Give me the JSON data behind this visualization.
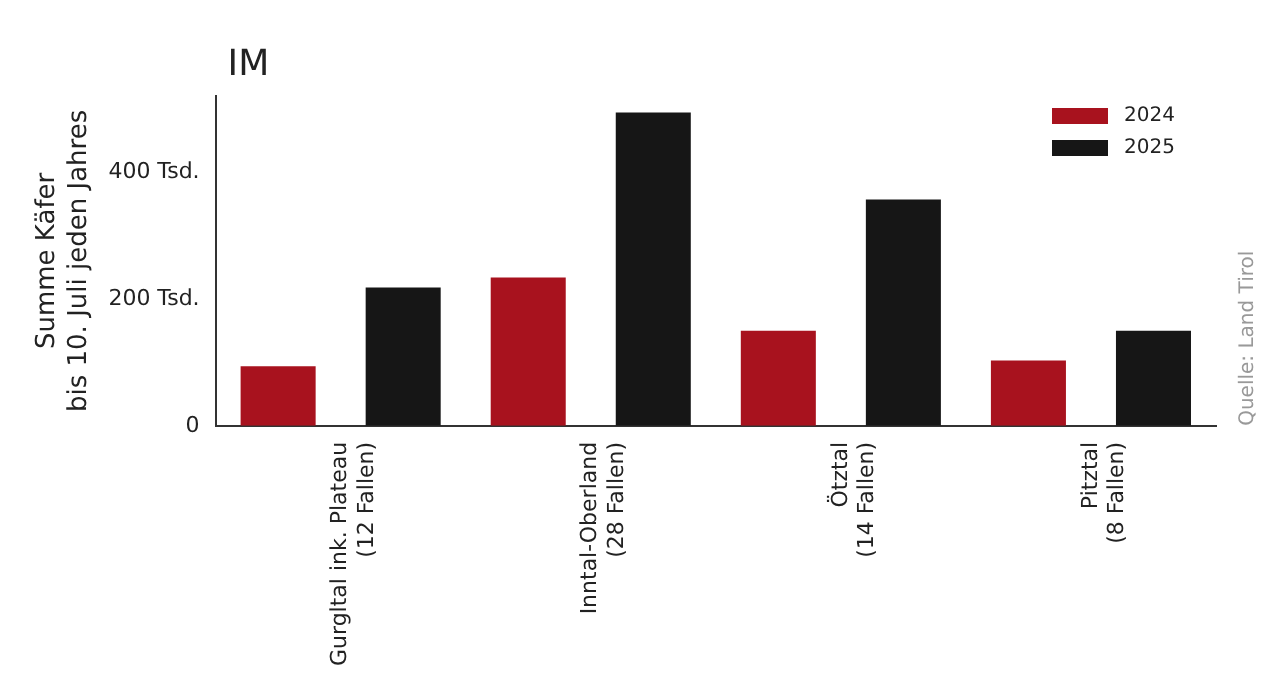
{
  "chart_data": {
    "type": "bar",
    "title": "IM",
    "ylabel": "Summe Käfer\nbis 10. Juli jeden Jahres",
    "categories": [
      "Gurgltal ink. Plateau\n(12 Fallen)",
      "Inntal-Oberland\n(28 Fallen)",
      "Ötztal\n(14 Fallen)",
      "Pitztal\n(8 Fallen)"
    ],
    "series": [
      {
        "name": "2024",
        "color": "#a8121e",
        "values": [
          94,
          234,
          150,
          103
        ]
      },
      {
        "name": "2025",
        "color": "#161616",
        "values": [
          218,
          494,
          357,
          150
        ]
      }
    ],
    "ylim": [
      0,
      520
    ],
    "yticks": [
      0,
      {
        "value": 200,
        "label": "200 Tsd."
      },
      {
        "value": 400,
        "label": "400 Tsd."
      }
    ],
    "grid": false,
    "legend": "top right",
    "annotations": [
      "Quelle: Land Tirol"
    ]
  }
}
